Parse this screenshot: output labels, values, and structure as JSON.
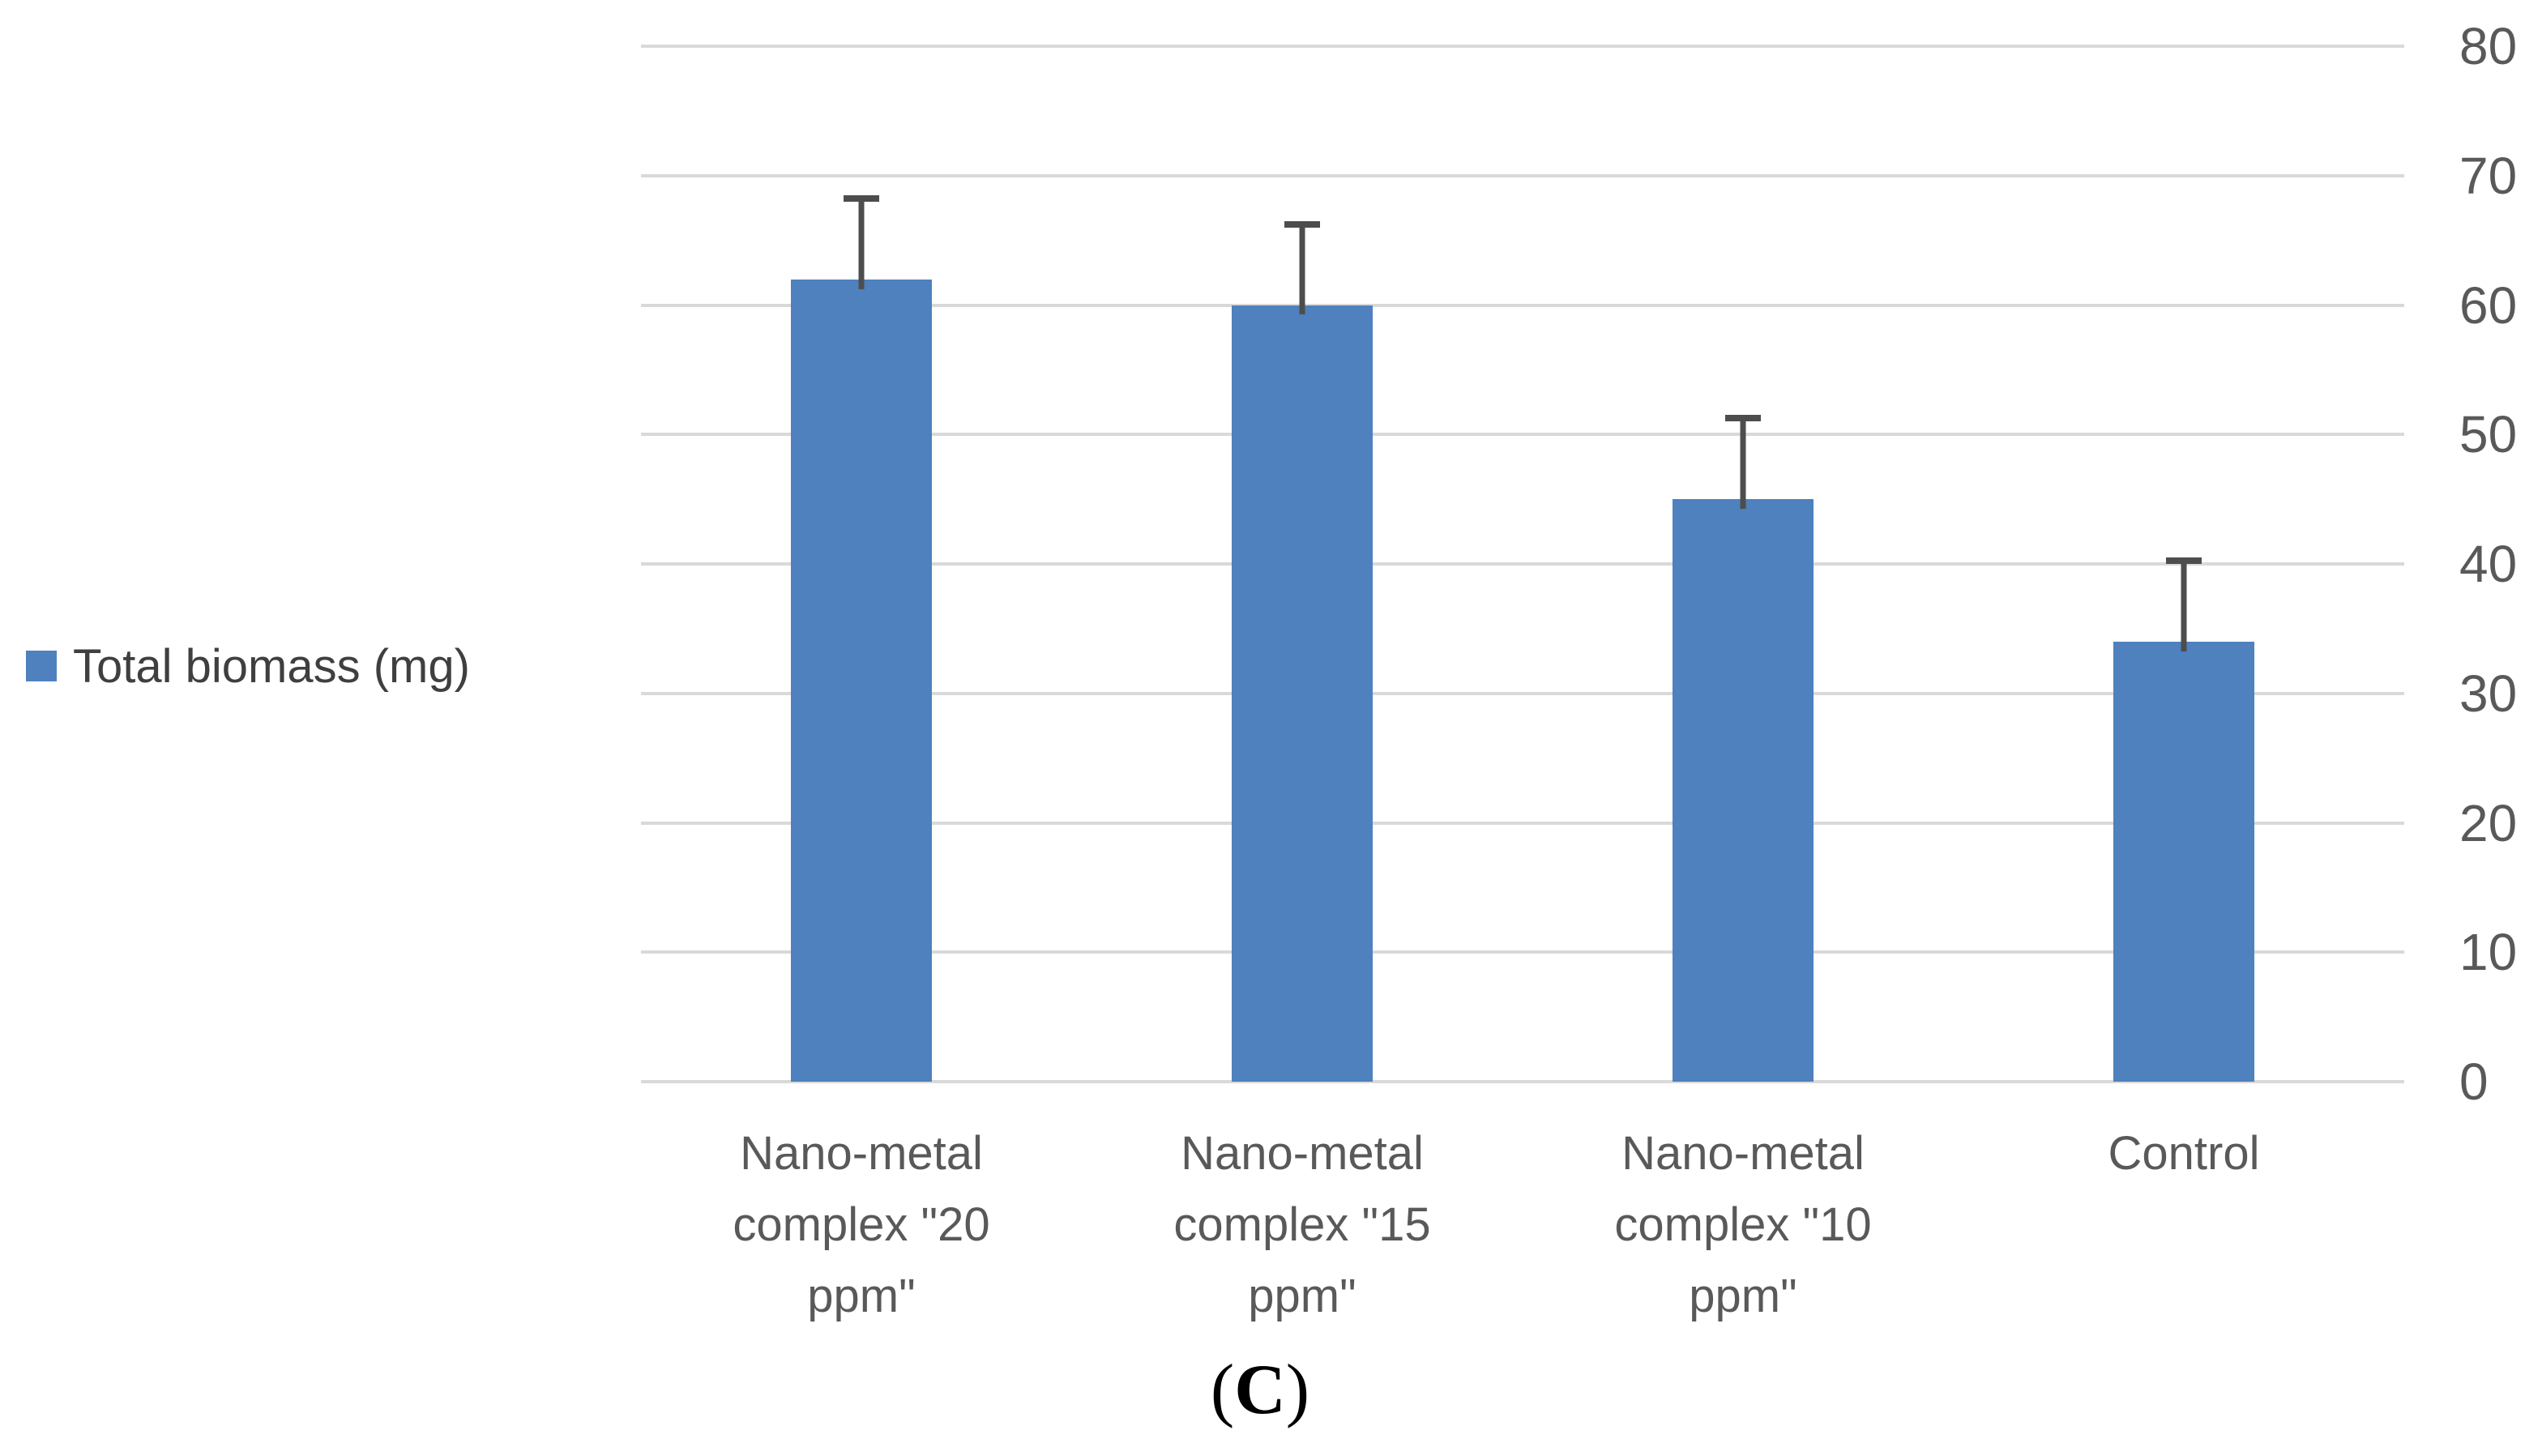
{
  "chart_data": {
    "type": "bar",
    "title": "",
    "xlabel": "",
    "ylabel": "",
    "series_name": "Total biomass (mg)",
    "categories": [
      "Nano-metal complex \"20 ppm\"",
      "Nano-metal complex \"15 ppm\"",
      "Nano-metal complex \"10 ppm\"",
      "Control"
    ],
    "category_lines": [
      [
        "Nano-metal",
        "complex \"20",
        "ppm\""
      ],
      [
        "Nano-metal",
        "complex \"15",
        "ppm\""
      ],
      [
        "Nano-metal",
        "complex \"10",
        "ppm\""
      ],
      [
        "Control"
      ]
    ],
    "values": [
      62,
      60,
      45,
      34
    ],
    "error_plus": [
      6.5,
      6.5,
      6.5,
      6.5
    ],
    "ylim": [
      0,
      80
    ],
    "yticks": [
      0,
      10,
      20,
      30,
      40,
      50,
      60,
      70,
      80
    ],
    "grid": true,
    "yaxis_side": "right",
    "legend_position": "left",
    "bar_color": "#4e81bd",
    "gridline_color": "#d9d9d9",
    "error_bar_color": "#4d4d4d",
    "tick_label_color": "#595959"
  },
  "legend": {
    "label": "Total biomass (mg)",
    "swatch_color": "#4e81bd"
  },
  "caption": {
    "open": "(",
    "letter": "C",
    "close": ")"
  }
}
